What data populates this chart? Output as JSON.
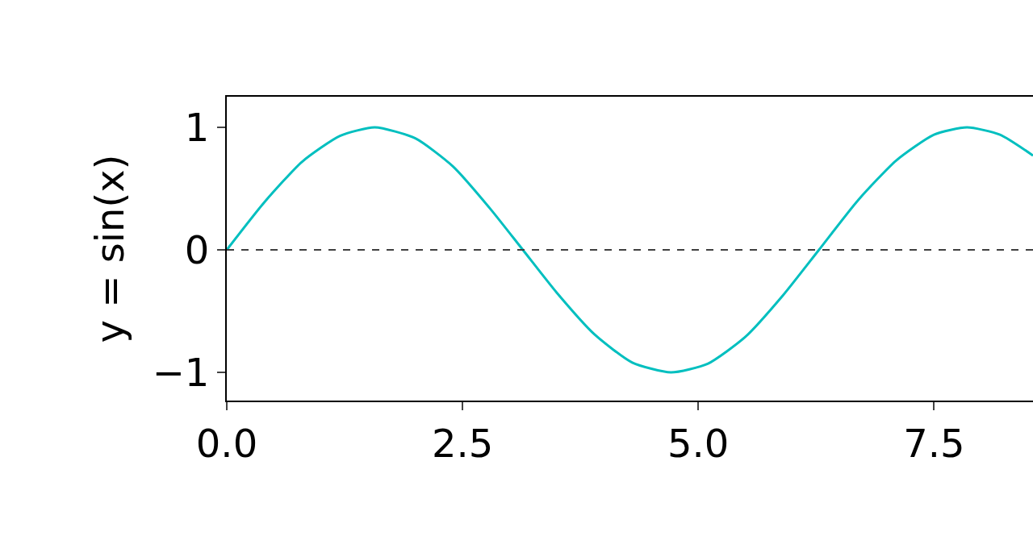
{
  "chart_data": {
    "type": "line",
    "ylabel": "y = sin(x)",
    "x": [
      0,
      0.4,
      0.8,
      1.2,
      1.57,
      2.0,
      2.4,
      2.8,
      3.14,
      3.5,
      3.9,
      4.3,
      4.71,
      5.1,
      5.5,
      5.9,
      6.28,
      6.7,
      7.1,
      7.5,
      7.85,
      8.2,
      8.55
    ],
    "series": [
      {
        "color": "#00bfbf",
        "values": [
          0,
          0.39,
          0.72,
          0.93,
          1,
          0.91,
          0.68,
          0.33,
          0,
          -0.35,
          -0.69,
          -0.92,
          -1,
          -0.93,
          -0.71,
          -0.37,
          0,
          0.41,
          0.73,
          0.94,
          1,
          0.94,
          0.77
        ]
      }
    ],
    "xlim": [
      0,
      8.55
    ],
    "xticks": [
      {
        "value": 0,
        "label": "0.0"
      },
      {
        "value": 2.5,
        "label": "2.5"
      },
      {
        "value": 5,
        "label": "5.0"
      },
      {
        "value": 7.5,
        "label": "7.5"
      }
    ],
    "ylim": [
      -1.23,
      1.25
    ],
    "yticks": [
      {
        "value": -1,
        "label": "−1"
      },
      0,
      1
    ],
    "ref_lines": [
      {
        "axis": "y",
        "value": 0,
        "color": "#404040",
        "line_style": "dashed"
      }
    ],
    "grid": false,
    "marker": "none",
    "line_style": "solid"
  }
}
